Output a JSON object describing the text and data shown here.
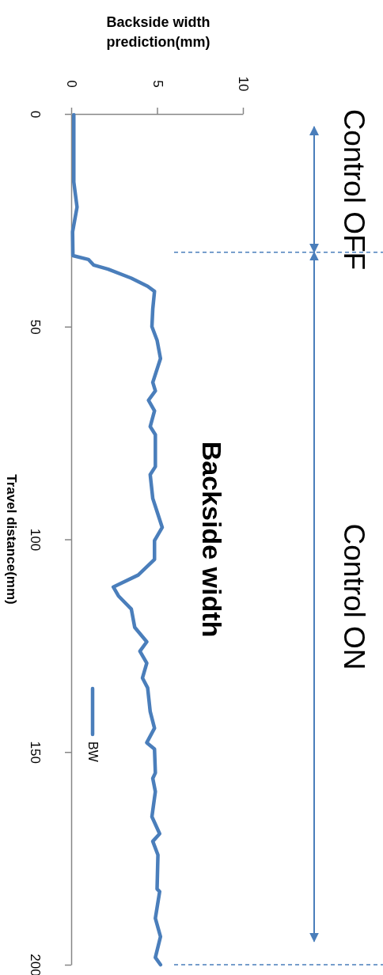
{
  "chart_data": {
    "type": "line",
    "title": "Backside width",
    "xlabel": "Backside width prediction(mm)",
    "ylabel": "Travel distance(mm)",
    "x": [
      0.15,
      0.15,
      0.34,
      0.08,
      0.1,
      1.0,
      1.3,
      2.15,
      3.5,
      4.45,
      4.85,
      4.75,
      4.7,
      5.0,
      5.2,
      4.75,
      4.9,
      4.5,
      4.85,
      4.6,
      4.9,
      4.9,
      4.6,
      4.75,
      5.0,
      5.3,
      4.85,
      4.85,
      3.9,
      2.45,
      2.75,
      3.5,
      3.7,
      4.4,
      4.0,
      4.4,
      4.15,
      4.45,
      4.6,
      4.85,
      4.4,
      4.85,
      4.9,
      4.75,
      4.9,
      4.7,
      5.15,
      4.75,
      5.05,
      5.0,
      5.15,
      4.9,
      5.2,
      4.9,
      5.2
    ],
    "series": [
      {
        "name": "BW",
        "color": "#4a7ebb",
        "values": [
          0.2,
          16,
          21.9,
          27.7,
          33.3,
          34.2,
          35.5,
          36.5,
          38.6,
          40.5,
          41.7,
          45.8,
          50,
          53.2,
          57.5,
          63.1,
          65.1,
          67.3,
          69.8,
          73.5,
          75.4,
          82.9,
          84.8,
          90.4,
          93.5,
          97.2,
          100.3,
          104.7,
          108.4,
          111.2,
          113.3,
          116.4,
          120.7,
          124.1,
          126.3,
          129.1,
          132.6,
          134.9,
          140.5,
          144.4,
          147.8,
          149.3,
          154.9,
          156.2,
          159.3,
          165.2,
          169.2,
          171,
          174.2,
          182.2,
          182.8,
          189.1,
          193.4,
          198.3,
          200
        ]
      }
    ],
    "xlim": [
      0,
      10
    ],
    "xticks": [
      0,
      5,
      10
    ],
    "ylim": [
      200,
      0
    ],
    "yticks": [
      0,
      50,
      100,
      150,
      200
    ],
    "legend": "bottom left",
    "grid": false,
    "ref_lines": [
      {
        "axis": "y",
        "value": 32.5,
        "color": "#4a7ebb",
        "line_style": "dashed"
      },
      {
        "axis": "y",
        "value": 200,
        "color": "#4a7ebb",
        "line_style": "dashed"
      }
    ],
    "annotations": [
      "Control OFF",
      "Control ON"
    ]
  }
}
